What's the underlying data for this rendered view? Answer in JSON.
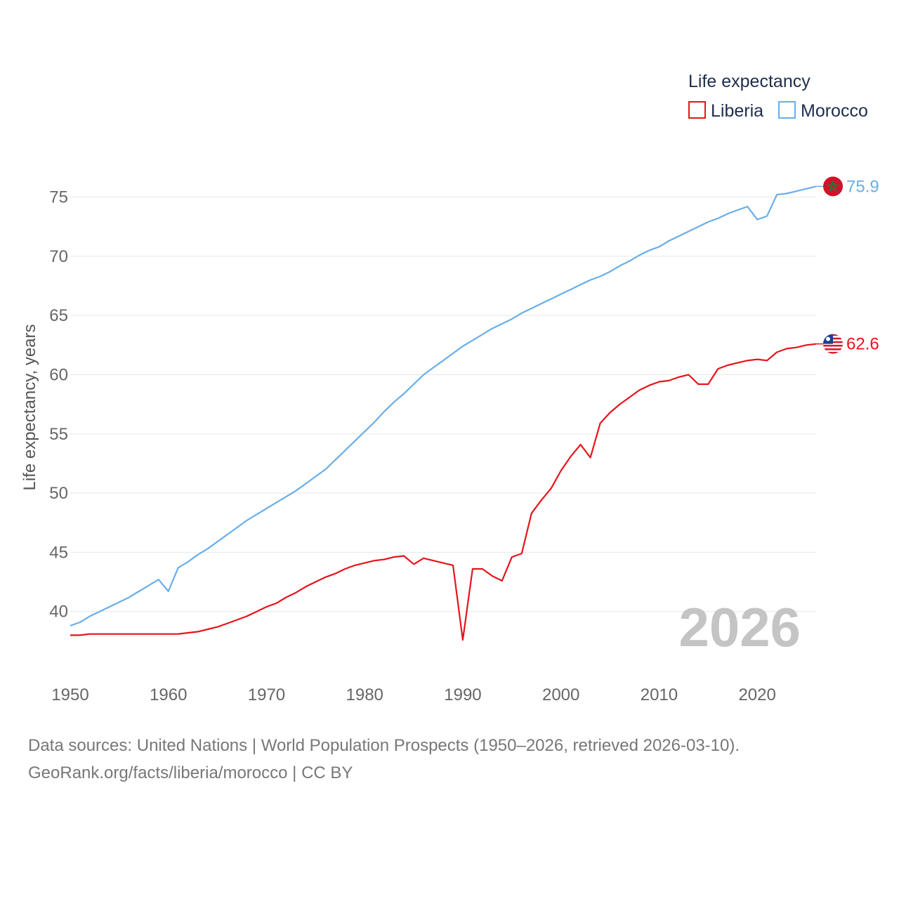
{
  "chart_data": {
    "type": "line",
    "title": "Life expectancy",
    "ylabel": "Life expectancy, years",
    "xlabel": "",
    "xlim": [
      1950,
      2026
    ],
    "ylim": [
      35,
      78
    ],
    "yticks": [
      40,
      45,
      50,
      55,
      60,
      65,
      70,
      75
    ],
    "xticks": [
      1950,
      1960,
      1970,
      1980,
      1990,
      2000,
      2010,
      2020
    ],
    "year_label": "2026",
    "legend_position": "top-right",
    "series": [
      {
        "name": "Liberia",
        "color": "#e8131b",
        "end_label": "62.6",
        "flag": "liberia-flag",
        "x": [
          1950,
          1951,
          1952,
          1953,
          1954,
          1955,
          1956,
          1957,
          1958,
          1959,
          1960,
          1961,
          1962,
          1963,
          1964,
          1965,
          1966,
          1967,
          1968,
          1969,
          1970,
          1971,
          1972,
          1973,
          1974,
          1975,
          1976,
          1977,
          1978,
          1979,
          1980,
          1981,
          1982,
          1983,
          1984,
          1985,
          1986,
          1987,
          1988,
          1989,
          1990,
          1991,
          1992,
          1993,
          1994,
          1995,
          1996,
          1997,
          1998,
          1999,
          2000,
          2001,
          2002,
          2003,
          2004,
          2005,
          2006,
          2007,
          2008,
          2009,
          2010,
          2011,
          2012,
          2013,
          2014,
          2015,
          2016,
          2017,
          2018,
          2019,
          2020,
          2021,
          2022,
          2023,
          2024,
          2025,
          2026
        ],
        "y": [
          38.0,
          38.0,
          38.1,
          38.1,
          38.1,
          38.1,
          38.1,
          38.1,
          38.1,
          38.1,
          38.1,
          38.1,
          38.2,
          38.3,
          38.5,
          38.7,
          39.0,
          39.3,
          39.6,
          40.0,
          40.4,
          40.7,
          41.2,
          41.6,
          42.1,
          42.5,
          42.9,
          43.2,
          43.6,
          43.9,
          44.1,
          44.3,
          44.4,
          44.6,
          44.7,
          44.0,
          44.5,
          44.3,
          44.1,
          43.9,
          37.6,
          43.6,
          43.6,
          43.0,
          42.6,
          44.6,
          44.9,
          48.3,
          49.4,
          50.4,
          51.9,
          53.1,
          54.1,
          53.0,
          55.9,
          56.8,
          57.5,
          58.1,
          58.7,
          59.1,
          59.4,
          59.5,
          59.8,
          60.0,
          59.2,
          59.2,
          60.5,
          60.8,
          61.0,
          61.2,
          61.3,
          61.2,
          61.9,
          62.2,
          62.3,
          62.5,
          62.6
        ]
      },
      {
        "name": "Morocco",
        "color": "#6aaee8",
        "end_label": "75.9",
        "flag": "morocco-flag",
        "x": [
          1950,
          1951,
          1952,
          1953,
          1954,
          1955,
          1956,
          1957,
          1958,
          1959,
          1960,
          1961,
          1962,
          1963,
          1964,
          1965,
          1966,
          1967,
          1968,
          1969,
          1970,
          1971,
          1972,
          1973,
          1974,
          1975,
          1976,
          1977,
          1978,
          1979,
          1980,
          1981,
          1982,
          1983,
          1984,
          1985,
          1986,
          1987,
          1988,
          1989,
          1990,
          1991,
          1992,
          1993,
          1994,
          1995,
          1996,
          1997,
          1998,
          1999,
          2000,
          2001,
          2002,
          2003,
          2004,
          2005,
          2006,
          2007,
          2008,
          2009,
          2010,
          2011,
          2012,
          2013,
          2014,
          2015,
          2016,
          2017,
          2018,
          2019,
          2020,
          2021,
          2022,
          2023,
          2024,
          2025,
          2026
        ],
        "y": [
          38.8,
          39.1,
          39.6,
          40.0,
          40.4,
          40.8,
          41.2,
          41.7,
          42.2,
          42.7,
          41.7,
          43.7,
          44.2,
          44.8,
          45.3,
          45.9,
          46.5,
          47.1,
          47.7,
          48.2,
          48.7,
          49.2,
          49.7,
          50.2,
          50.8,
          51.4,
          52.0,
          52.8,
          53.6,
          54.4,
          55.2,
          56.0,
          56.9,
          57.7,
          58.4,
          59.2,
          60.0,
          60.6,
          61.2,
          61.8,
          62.4,
          62.9,
          63.4,
          63.9,
          64.3,
          64.7,
          65.2,
          65.6,
          66.0,
          66.4,
          66.8,
          67.2,
          67.6,
          68.0,
          68.3,
          68.7,
          69.2,
          69.6,
          70.1,
          70.5,
          70.8,
          71.3,
          71.7,
          72.1,
          72.5,
          72.9,
          73.2,
          73.6,
          73.9,
          74.2,
          73.1,
          73.4,
          75.2,
          75.3,
          75.5,
          75.7,
          75.9
        ]
      }
    ]
  },
  "source": {
    "line1": "Data sources: United Nations | World Population Prospects (1950–2026, retrieved 2026-03-10).",
    "line2": "GeoRank.org/facts/liberia/morocco | CC BY"
  }
}
